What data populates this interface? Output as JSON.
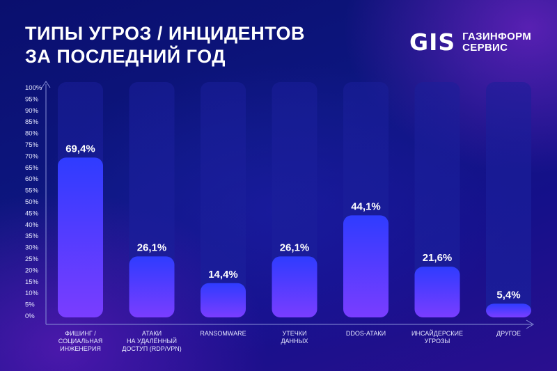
{
  "title_lines": [
    "ТИПЫ УГРОЗ / ИНЦИДЕНТОВ",
    "ЗА ПОСЛЕДНИЙ ГОД"
  ],
  "logo": {
    "mark": "GIS",
    "line1": "ГАЗИНФОРМ",
    "line2": "СЕРВИС"
  },
  "colors": {
    "bar_top": "#2f3cff",
    "bar_bottom": "#7a3dff",
    "track": "#1a1e9a",
    "axis": "#8890d8"
  },
  "chart_data": {
    "type": "bar",
    "categories": [
      [
        "ФИШИНГ /",
        "СОЦИАЛЬНАЯ",
        "ИНЖЕНЕРИЯ"
      ],
      [
        "АТАКИ",
        "НА УДАЛЁННЫЙ",
        "ДОСТУП (RDP/VPN)"
      ],
      [
        "RANSOMWARE"
      ],
      [
        "УТЕЧКИ",
        "ДАННЫХ"
      ],
      [
        "DDOS-АТАКИ"
      ],
      [
        "ИНСАЙДЕРСКИЕ",
        "УГРОЗЫ"
      ],
      [
        "ДРУГОЕ"
      ]
    ],
    "values": [
      69.4,
      26.1,
      14.4,
      26.1,
      44.1,
      21.6,
      5.4
    ],
    "value_labels": [
      "69,4%",
      "26,1%",
      "14,4%",
      "26,1%",
      "44,1%",
      "21,6%",
      "5,4%"
    ],
    "ylim": [
      0,
      100
    ],
    "y_ticks": [
      "0%",
      "5%",
      "10%",
      "15%",
      "20%",
      "25%",
      "30%",
      "35%",
      "40%",
      "45%",
      "50%",
      "55%",
      "60%",
      "65%",
      "70%",
      "75%",
      "80%",
      "85%",
      "90%",
      "95%",
      "100%"
    ],
    "grid": false
  }
}
